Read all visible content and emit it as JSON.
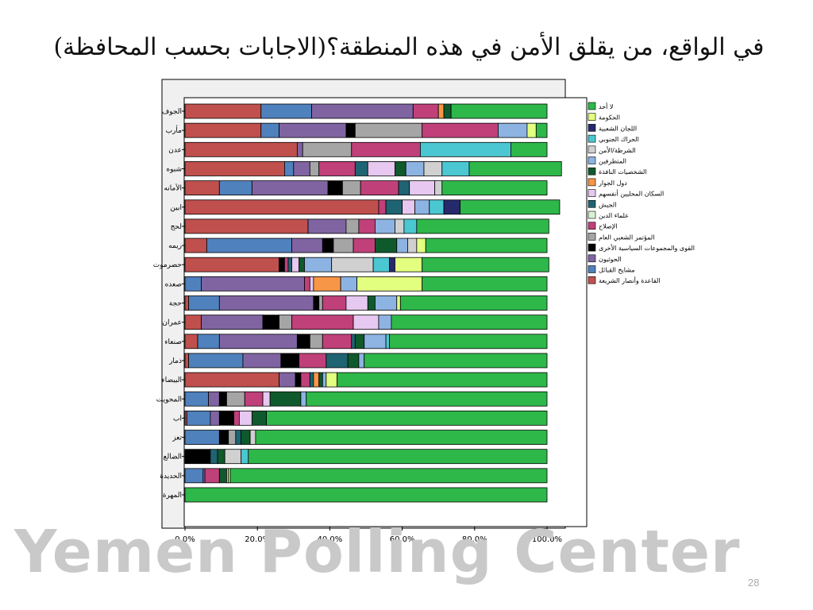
{
  "slide": {
    "title": "في الواقع، من يقلق الأمن في هذه المنطقة؟(الاجابات بحسب المحافظة)",
    "watermark": "Yemen Polling Center",
    "page_number": "28"
  },
  "chart_data": {
    "type": "bar",
    "orientation": "horizontal",
    "stacked": true,
    "normalized": true,
    "x_ticks": [
      "0.0%",
      "20.0%",
      "40.0%",
      "60.0%",
      "80.0%",
      "100.0%"
    ],
    "xlim": [
      0,
      100
    ],
    "grid": false,
    "legend_position": "right",
    "categories": [
      "الجوف",
      "مأرب",
      "عدن",
      "شبوه",
      "الأمانه",
      "ابين",
      "لحج",
      "ريمه",
      "حضرموت",
      "صعده",
      "حجة",
      "عمران",
      "صنعاء",
      "ذمار",
      "البيضاء",
      "المحويت",
      "اب",
      "تعز",
      "الضالع",
      "الحديدة",
      "المهرة"
    ],
    "series": [
      {
        "name": "القاعدة وأنصار الشريعة",
        "color": "#c0504d",
        "values": [
          21,
          21,
          31,
          27.5,
          9.5,
          53.5,
          34,
          6,
          26,
          0,
          1,
          4.5,
          3.5,
          1,
          26,
          0,
          0.5,
          0,
          0,
          0,
          0
        ]
      },
      {
        "name": "مشايخ القبائل",
        "color": "#4f81bd",
        "values": [
          14,
          5,
          0,
          2.5,
          9,
          0,
          0,
          23.5,
          0,
          4.5,
          8.5,
          0,
          6,
          15,
          0,
          6.5,
          6.5,
          9.5,
          0,
          5,
          0
        ]
      },
      {
        "name": "الحوثيون",
        "color": "#8064a2",
        "values": [
          28,
          18.5,
          1.5,
          4.5,
          21,
          0,
          10.5,
          8.5,
          0,
          28.5,
          26,
          17,
          21.5,
          10.5,
          4.5,
          3,
          2.5,
          0,
          0,
          0.5,
          0
        ]
      },
      {
        "name": "القوى والمجموعات السياسية الأخرى",
        "color": "#000000",
        "values": [
          0,
          2.5,
          0,
          0,
          4,
          0,
          0,
          3,
          1.5,
          0,
          1.5,
          4.5,
          3.5,
          5,
          1.5,
          2,
          4,
          2.5,
          7,
          0,
          0
        ]
      },
      {
        "name": "المؤتمر الشعبي العام",
        "color": "#a5a5a5",
        "values": [
          0,
          18.5,
          13.5,
          2.5,
          5,
          0,
          3.5,
          5.5,
          0,
          0,
          1,
          3.5,
          3.5,
          0,
          0,
          5,
          0,
          2,
          0,
          0,
          0
        ]
      },
      {
        "name": "الإصلاح",
        "color": "#c0407a",
        "values": [
          7,
          21,
          19,
          10,
          10.5,
          2,
          4.5,
          6,
          1,
          1.5,
          6.5,
          17,
          8,
          7.5,
          2.5,
          5,
          1.5,
          0,
          0,
          4,
          0
        ]
      },
      {
        "name": "علماء الدين",
        "color": "#d9f1d0",
        "values": [
          0,
          0,
          0,
          0,
          0,
          0,
          0,
          0,
          0,
          0,
          0,
          0,
          0,
          0,
          0,
          0,
          0,
          0,
          0,
          0,
          0
        ]
      },
      {
        "name": "الجيش",
        "color": "#1f6473",
        "values": [
          0,
          0,
          0,
          3.5,
          3,
          4.5,
          0,
          0,
          1,
          0,
          0,
          0,
          1,
          6,
          1,
          0,
          0,
          1.5,
          2,
          0,
          0
        ]
      },
      {
        "name": "السكان المحليين أنفسهم",
        "color": "#e6c8f0",
        "values": [
          0,
          0,
          0,
          7.5,
          7,
          3.5,
          0,
          0,
          2,
          1,
          6,
          7,
          0,
          0,
          0,
          2,
          3.5,
          0,
          0,
          0,
          0
        ]
      },
      {
        "name": "دول الجوار",
        "color": "#f79646",
        "values": [
          1.5,
          0,
          0,
          0,
          0,
          0,
          0,
          0,
          0,
          7.5,
          0,
          0,
          0,
          0,
          1.5,
          0,
          0,
          0,
          0,
          0,
          0
        ]
      },
      {
        "name": "الشخصيات النافذة",
        "color": "#0f5a2d",
        "values": [
          2,
          0,
          0,
          3,
          0,
          0,
          0,
          6,
          1.5,
          0,
          2,
          0,
          2.5,
          3,
          1,
          8.5,
          4,
          2.5,
          2,
          2,
          0
        ]
      },
      {
        "name": "المتطرفين",
        "color": "#8db3e2",
        "values": [
          0,
          8,
          0,
          5,
          0,
          4,
          5.5,
          3,
          7.5,
          4.5,
          6,
          3.5,
          6,
          1.5,
          1,
          1.5,
          0,
          0,
          0,
          0,
          0
        ]
      },
      {
        "name": "الشرطة/الأمن",
        "color": "#d0d0d0",
        "values": [
          0,
          0,
          0,
          5,
          2,
          0,
          2.5,
          2.5,
          11.5,
          0,
          0,
          0,
          0,
          0,
          0,
          0,
          0,
          1.5,
          4.5,
          0.5,
          0
        ]
      },
      {
        "name": "الحراك الجنوبي",
        "color": "#4bc7d2",
        "values": [
          0,
          0,
          25,
          7.5,
          0,
          4,
          3.5,
          0,
          4.5,
          0,
          0,
          0,
          1,
          0,
          0,
          0,
          0,
          0,
          2,
          0,
          0
        ]
      },
      {
        "name": "اللجان الشعبية",
        "color": "#27296d",
        "values": [
          0,
          0,
          0,
          0,
          0,
          4.5,
          0,
          0,
          1.5,
          0,
          0,
          0,
          0,
          0,
          0,
          0,
          0,
          0,
          0,
          0,
          0
        ]
      },
      {
        "name": "الحكومة",
        "color": "#e3ff80",
        "values": [
          0,
          2.5,
          0,
          0,
          0,
          0,
          0,
          2.5,
          7.5,
          18,
          1,
          0,
          0,
          0,
          3,
          0,
          0,
          0,
          0,
          0.5,
          0
        ]
      },
      {
        "name": "لا أحد",
        "color": "#2eb84a",
        "values": [
          26.5,
          3,
          10,
          25.5,
          29,
          27.5,
          36.5,
          33.5,
          35,
          34.5,
          40.5,
          43,
          43.5,
          50.5,
          58,
          66.5,
          77.5,
          80.5,
          82.5,
          87.5,
          100
        ]
      }
    ]
  }
}
